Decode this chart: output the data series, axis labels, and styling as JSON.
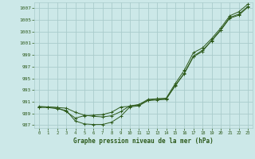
{
  "title": "Graphe pression niveau de la mer (hPa)",
  "bg_color": "#cce8e8",
  "grid_color": "#aacccc",
  "line_color": "#2d5a1b",
  "marker_color": "#2d5a1b",
  "ylim": [
    986.5,
    1008.0
  ],
  "xlim": [
    -0.5,
    23.5
  ],
  "yticks": [
    987,
    989,
    991,
    993,
    995,
    997,
    999,
    1001,
    1003,
    1005,
    1007
  ],
  "xticks": [
    0,
    1,
    2,
    3,
    4,
    5,
    6,
    7,
    8,
    9,
    10,
    11,
    12,
    13,
    14,
    15,
    16,
    17,
    18,
    19,
    20,
    21,
    22,
    23
  ],
  "series1_x": [
    0,
    1,
    2,
    3,
    4,
    5,
    6,
    7,
    8,
    9,
    10,
    11,
    12,
    13,
    14,
    15,
    16,
    17,
    18,
    19,
    20,
    21,
    22,
    23
  ],
  "series1_y": [
    990.0,
    990.1,
    990.0,
    989.3,
    988.2,
    988.6,
    988.7,
    988.8,
    989.2,
    990.1,
    990.2,
    990.5,
    991.4,
    991.5,
    991.5,
    993.7,
    995.9,
    998.8,
    999.8,
    1001.4,
    1003.2,
    1005.3,
    1005.8,
    1007.2
  ],
  "series2_x": [
    0,
    1,
    2,
    3,
    4,
    5,
    6,
    7,
    8,
    9,
    10,
    11,
    12,
    13,
    14,
    15,
    16,
    17,
    18,
    19,
    20,
    21,
    22,
    23
  ],
  "series2_y": [
    990.1,
    990.0,
    989.8,
    989.5,
    987.7,
    987.2,
    987.1,
    987.1,
    987.5,
    988.5,
    990.1,
    990.3,
    991.2,
    991.3,
    991.4,
    993.8,
    995.8,
    998.7,
    999.6,
    1001.5,
    1003.3,
    1005.4,
    1006.0,
    1007.3
  ],
  "series3_x": [
    0,
    1,
    2,
    3,
    4,
    5,
    6,
    7,
    8,
    9,
    10,
    11,
    12,
    13,
    14,
    15,
    16,
    17,
    18,
    19,
    20,
    21,
    22,
    23
  ],
  "series3_y": [
    990.2,
    990.1,
    990.0,
    989.9,
    989.2,
    988.7,
    988.5,
    988.4,
    988.6,
    989.3,
    990.3,
    990.5,
    991.2,
    991.5,
    991.6,
    994.1,
    996.4,
    999.4,
    1000.2,
    1001.8,
    1003.6,
    1005.7,
    1006.4,
    1007.7
  ]
}
